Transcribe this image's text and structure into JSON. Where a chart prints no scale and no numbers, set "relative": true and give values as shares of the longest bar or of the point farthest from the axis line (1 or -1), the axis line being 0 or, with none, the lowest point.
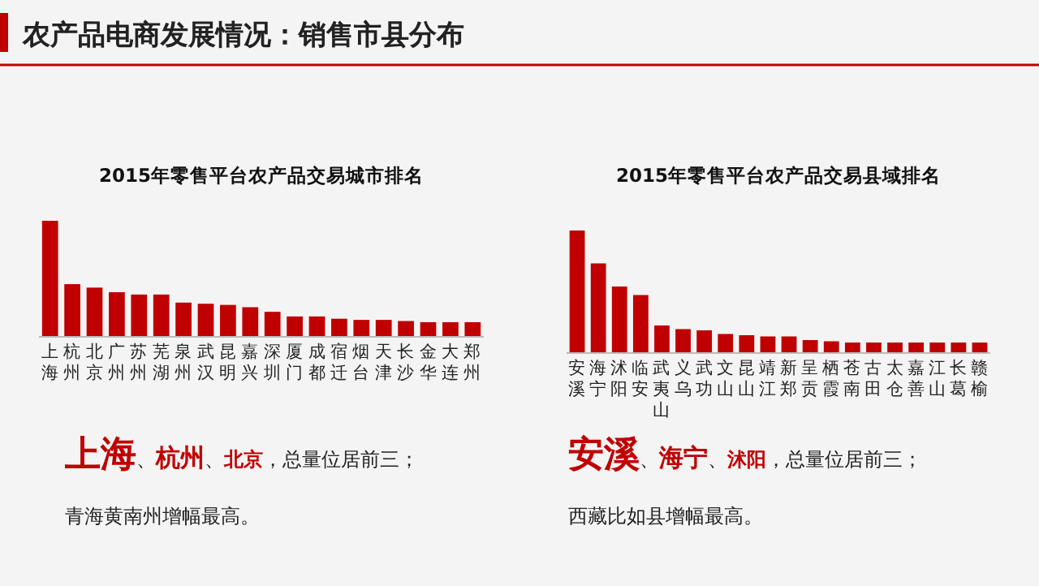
{
  "chart_data": [
    {
      "type": "bar",
      "relative": true,
      "title": "2015年零售平台农产品交易城市排名",
      "color": "#c00000",
      "categories": [
        "上海",
        "杭州",
        "北京",
        "广州",
        "苏州",
        "芜湖",
        "泉州",
        "武汉",
        "昆明",
        "嘉兴",
        "深圳",
        "厦门",
        "成都",
        "宿迁",
        "烟台",
        "天津",
        "长沙",
        "金华",
        "大连",
        "郑州"
      ],
      "values": [
        1,
        0.45,
        0.42,
        0.38,
        0.36,
        0.36,
        0.29,
        0.28,
        0.27,
        0.25,
        0.21,
        0.17,
        0.17,
        0.15,
        0.14,
        0.14,
        0.13,
        0.12,
        0.12,
        0.12
      ],
      "annotations": [
        "农产品电商发展情况：销售市县分布",
        "**上海**、**杭州**、**北京**，总量位居前三；",
        "青海黄南州增幅最高。"
      ]
    },
    {
      "type": "bar",
      "relative": true,
      "title": "2015年零售平台农产品交易县域排名",
      "color": "#c00000",
      "categories": [
        "安溪",
        "海宁",
        "沭阳",
        "临安",
        "武夷山",
        "义乌",
        "武功",
        "文山",
        "昆山",
        "靖江",
        "新郑",
        "呈贡",
        "栖霞",
        "苍南",
        "古田",
        "太仓",
        "嘉善",
        "江山",
        "长葛",
        "赣榆"
      ],
      "values": [
        1,
        0.73,
        0.54,
        0.47,
        0.22,
        0.19,
        0.18,
        0.15,
        0.14,
        0.13,
        0.13,
        0.1,
        0.09,
        0.08,
        0.08,
        0.08,
        0.08,
        0.08,
        0.08,
        0.08
      ],
      "annotations": [
        "**安溪**、**海宁**、**沭阳**，总量位居前三；",
        "西藏比如县增幅最高。"
      ]
    }
  ]
}
